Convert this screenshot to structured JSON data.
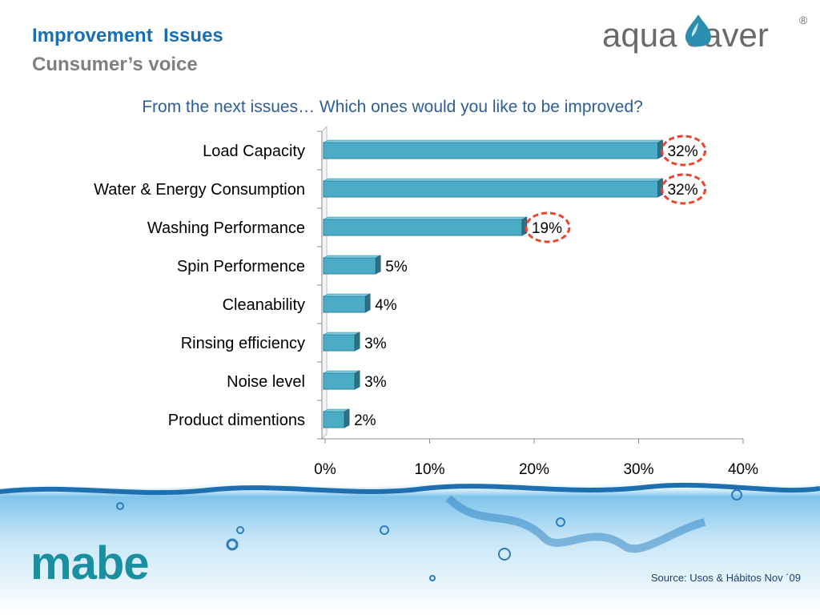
{
  "header": {
    "title": "Improvement  Issues",
    "subtitle": "Cunsumer’s voice"
  },
  "brand": {
    "logo_text": "aqua saver",
    "registered_mark": "®"
  },
  "question": "From the next issues… Which ones would you like to be improved?",
  "chart_data": {
    "type": "bar",
    "orientation": "horizontal",
    "categories": [
      "Load Capacity",
      "Water & Energy Consumption",
      "Washing Performance",
      "Spin Performence",
      "Cleanability",
      "Rinsing efficiency",
      "Noise level",
      "Product dimentions"
    ],
    "values": [
      32,
      32,
      19,
      5,
      4,
      3,
      3,
      2
    ],
    "data_labels": [
      "32%",
      "32%",
      "19%",
      "5%",
      "4%",
      "3%",
      "3%",
      "2%"
    ],
    "highlighted": [
      true,
      true,
      true,
      false,
      false,
      false,
      false,
      false
    ],
    "xlim": [
      0,
      40
    ],
    "xticks": [
      0,
      10,
      20,
      30,
      40
    ],
    "xtick_labels": [
      "0%",
      "10%",
      "20%",
      "30%",
      "40%"
    ],
    "grid": false,
    "legend": "none"
  },
  "colors": {
    "bar": "#4bacc6",
    "highlight_circle": "#e8452c",
    "title": "#1a6eb4",
    "question": "#2e5d97"
  },
  "footer": {
    "logo_text": "mabe",
    "source": "Source: Usos & Hábitos Nov ´09"
  }
}
